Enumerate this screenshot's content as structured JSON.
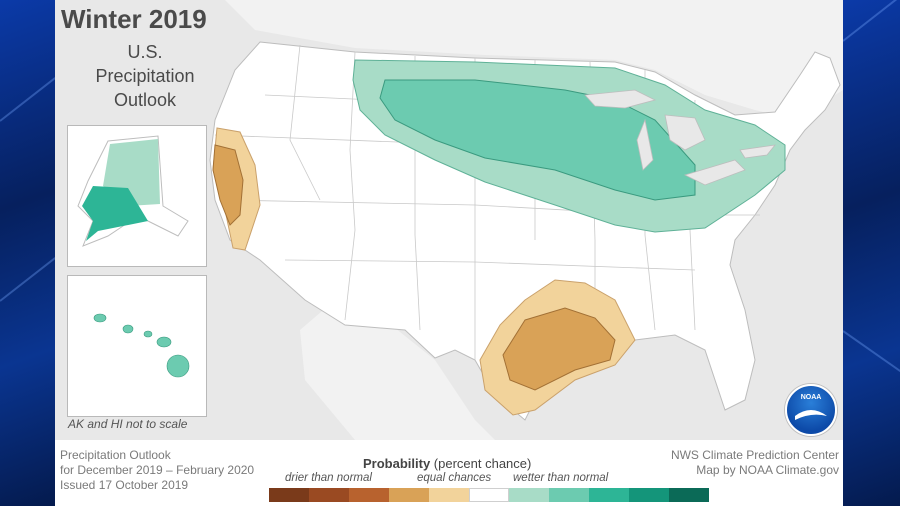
{
  "title": "Winter 2019",
  "subtitle_lines": [
    "U.S.",
    "Precipitation",
    "Outlook"
  ],
  "inset_note": "AK and HI not to scale",
  "footer_left": [
    "Precipitation Outlook",
    "for December 2019 – February 2020",
    "Issued 17 October 2019"
  ],
  "footer_right": [
    "NWS Climate Prediction Center",
    "Map by NOAA Climate.gov"
  ],
  "legend": {
    "title_bold": "Probability",
    "title_rest": " (percent chance)",
    "labels": [
      "drier than normal",
      "equal chances",
      "wetter than normal"
    ],
    "colors": [
      "#7a3a1a",
      "#9a4a22",
      "#b8622e",
      "#d9a257",
      "#f2d39b",
      "#ffffff",
      "#a8dcc7",
      "#6ccbb0",
      "#2db596",
      "#14957a",
      "#0b6a57"
    ]
  },
  "logo_text": "NOAA",
  "colors": {
    "wet_light": "#a8dcc7",
    "wet_mid": "#6ccbb0",
    "dry_light": "#f2d39b",
    "dry_mid": "#d9a257",
    "land": "#ffffff",
    "water": "#e8e8e8",
    "border": "#c8c8c8"
  }
}
